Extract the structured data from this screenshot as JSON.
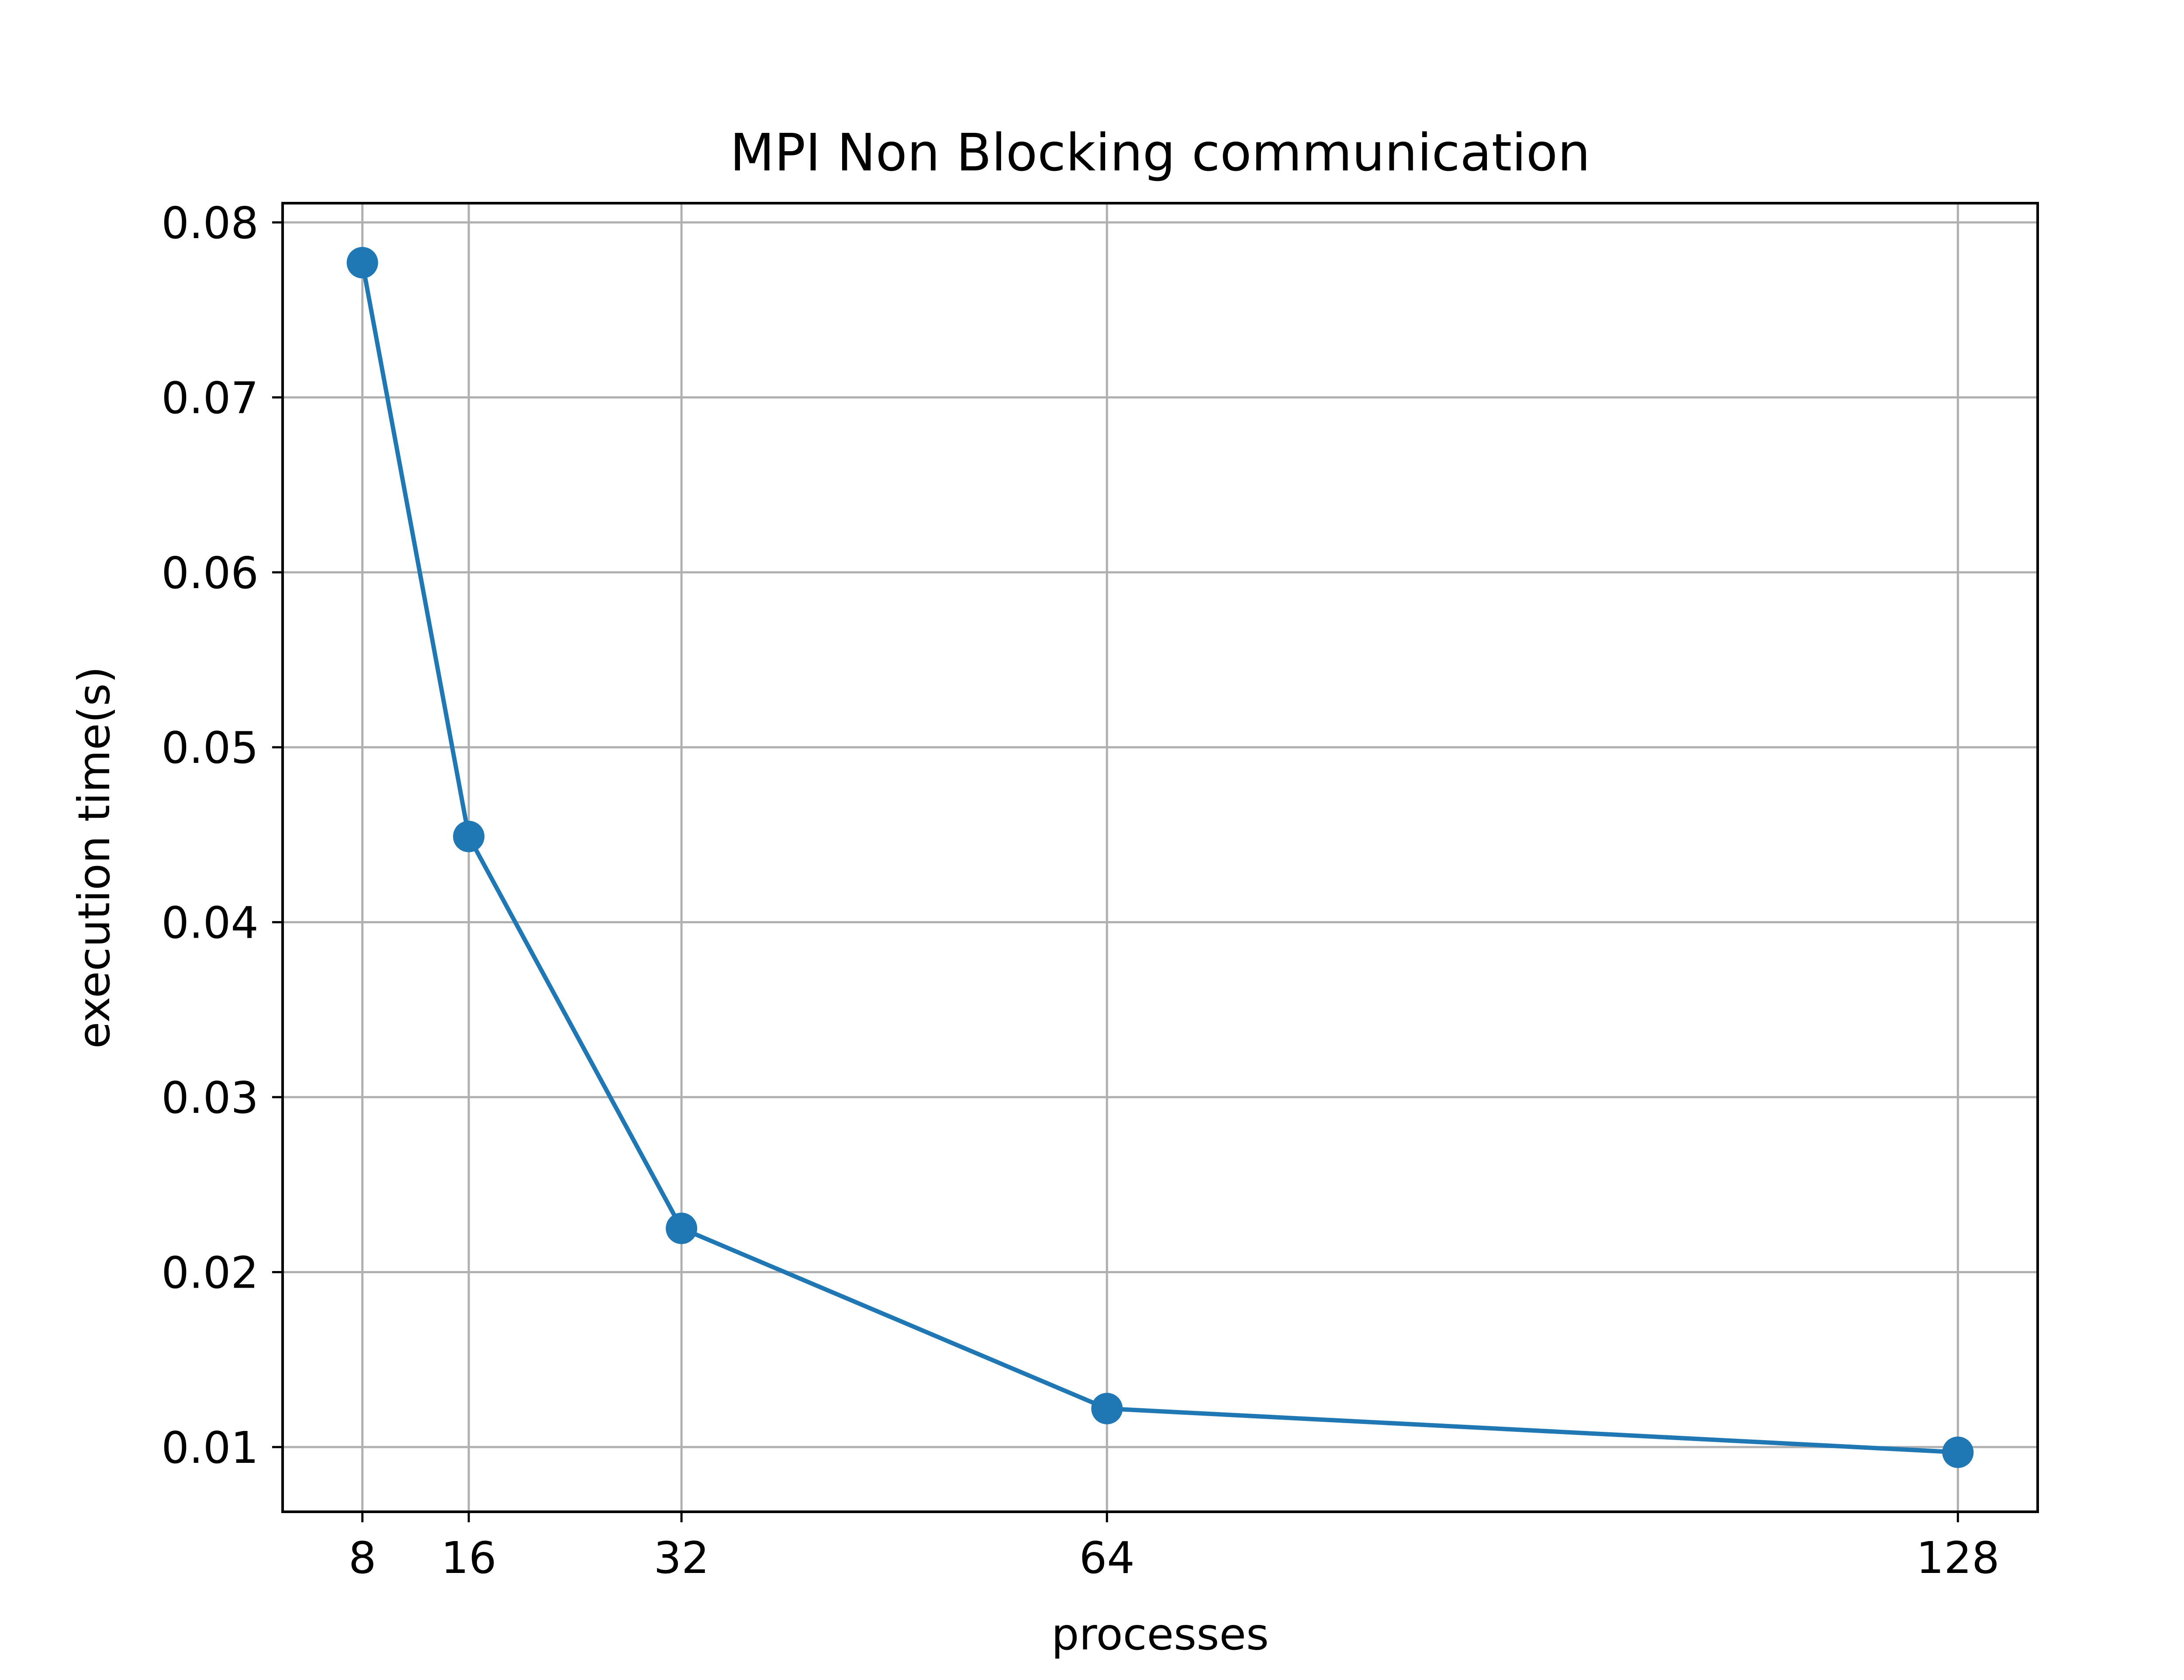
{
  "chart_data": {
    "type": "line",
    "title": "MPI Non Blocking communication",
    "xlabel": "processes",
    "ylabel": "execution time(s)",
    "x": [
      8,
      16,
      32,
      64,
      128
    ],
    "x_tick_labels": [
      "8",
      "16",
      "32",
      "64",
      "128"
    ],
    "xlim": [
      2,
      134
    ],
    "ylim": [
      0.0063,
      0.0811
    ],
    "y_ticks": [
      0.01,
      0.02,
      0.03,
      0.04,
      0.05,
      0.06,
      0.07,
      0.08
    ],
    "y_tick_labels": [
      "0.01",
      "0.02",
      "0.03",
      "0.04",
      "0.05",
      "0.06",
      "0.07",
      "0.08"
    ],
    "series": [
      {
        "values": [
          0.0777,
          0.0449,
          0.0225,
          0.0122,
          0.0097
        ],
        "color": "#1f77b4",
        "marker": "circle"
      }
    ],
    "grid": true,
    "legend": "none"
  }
}
